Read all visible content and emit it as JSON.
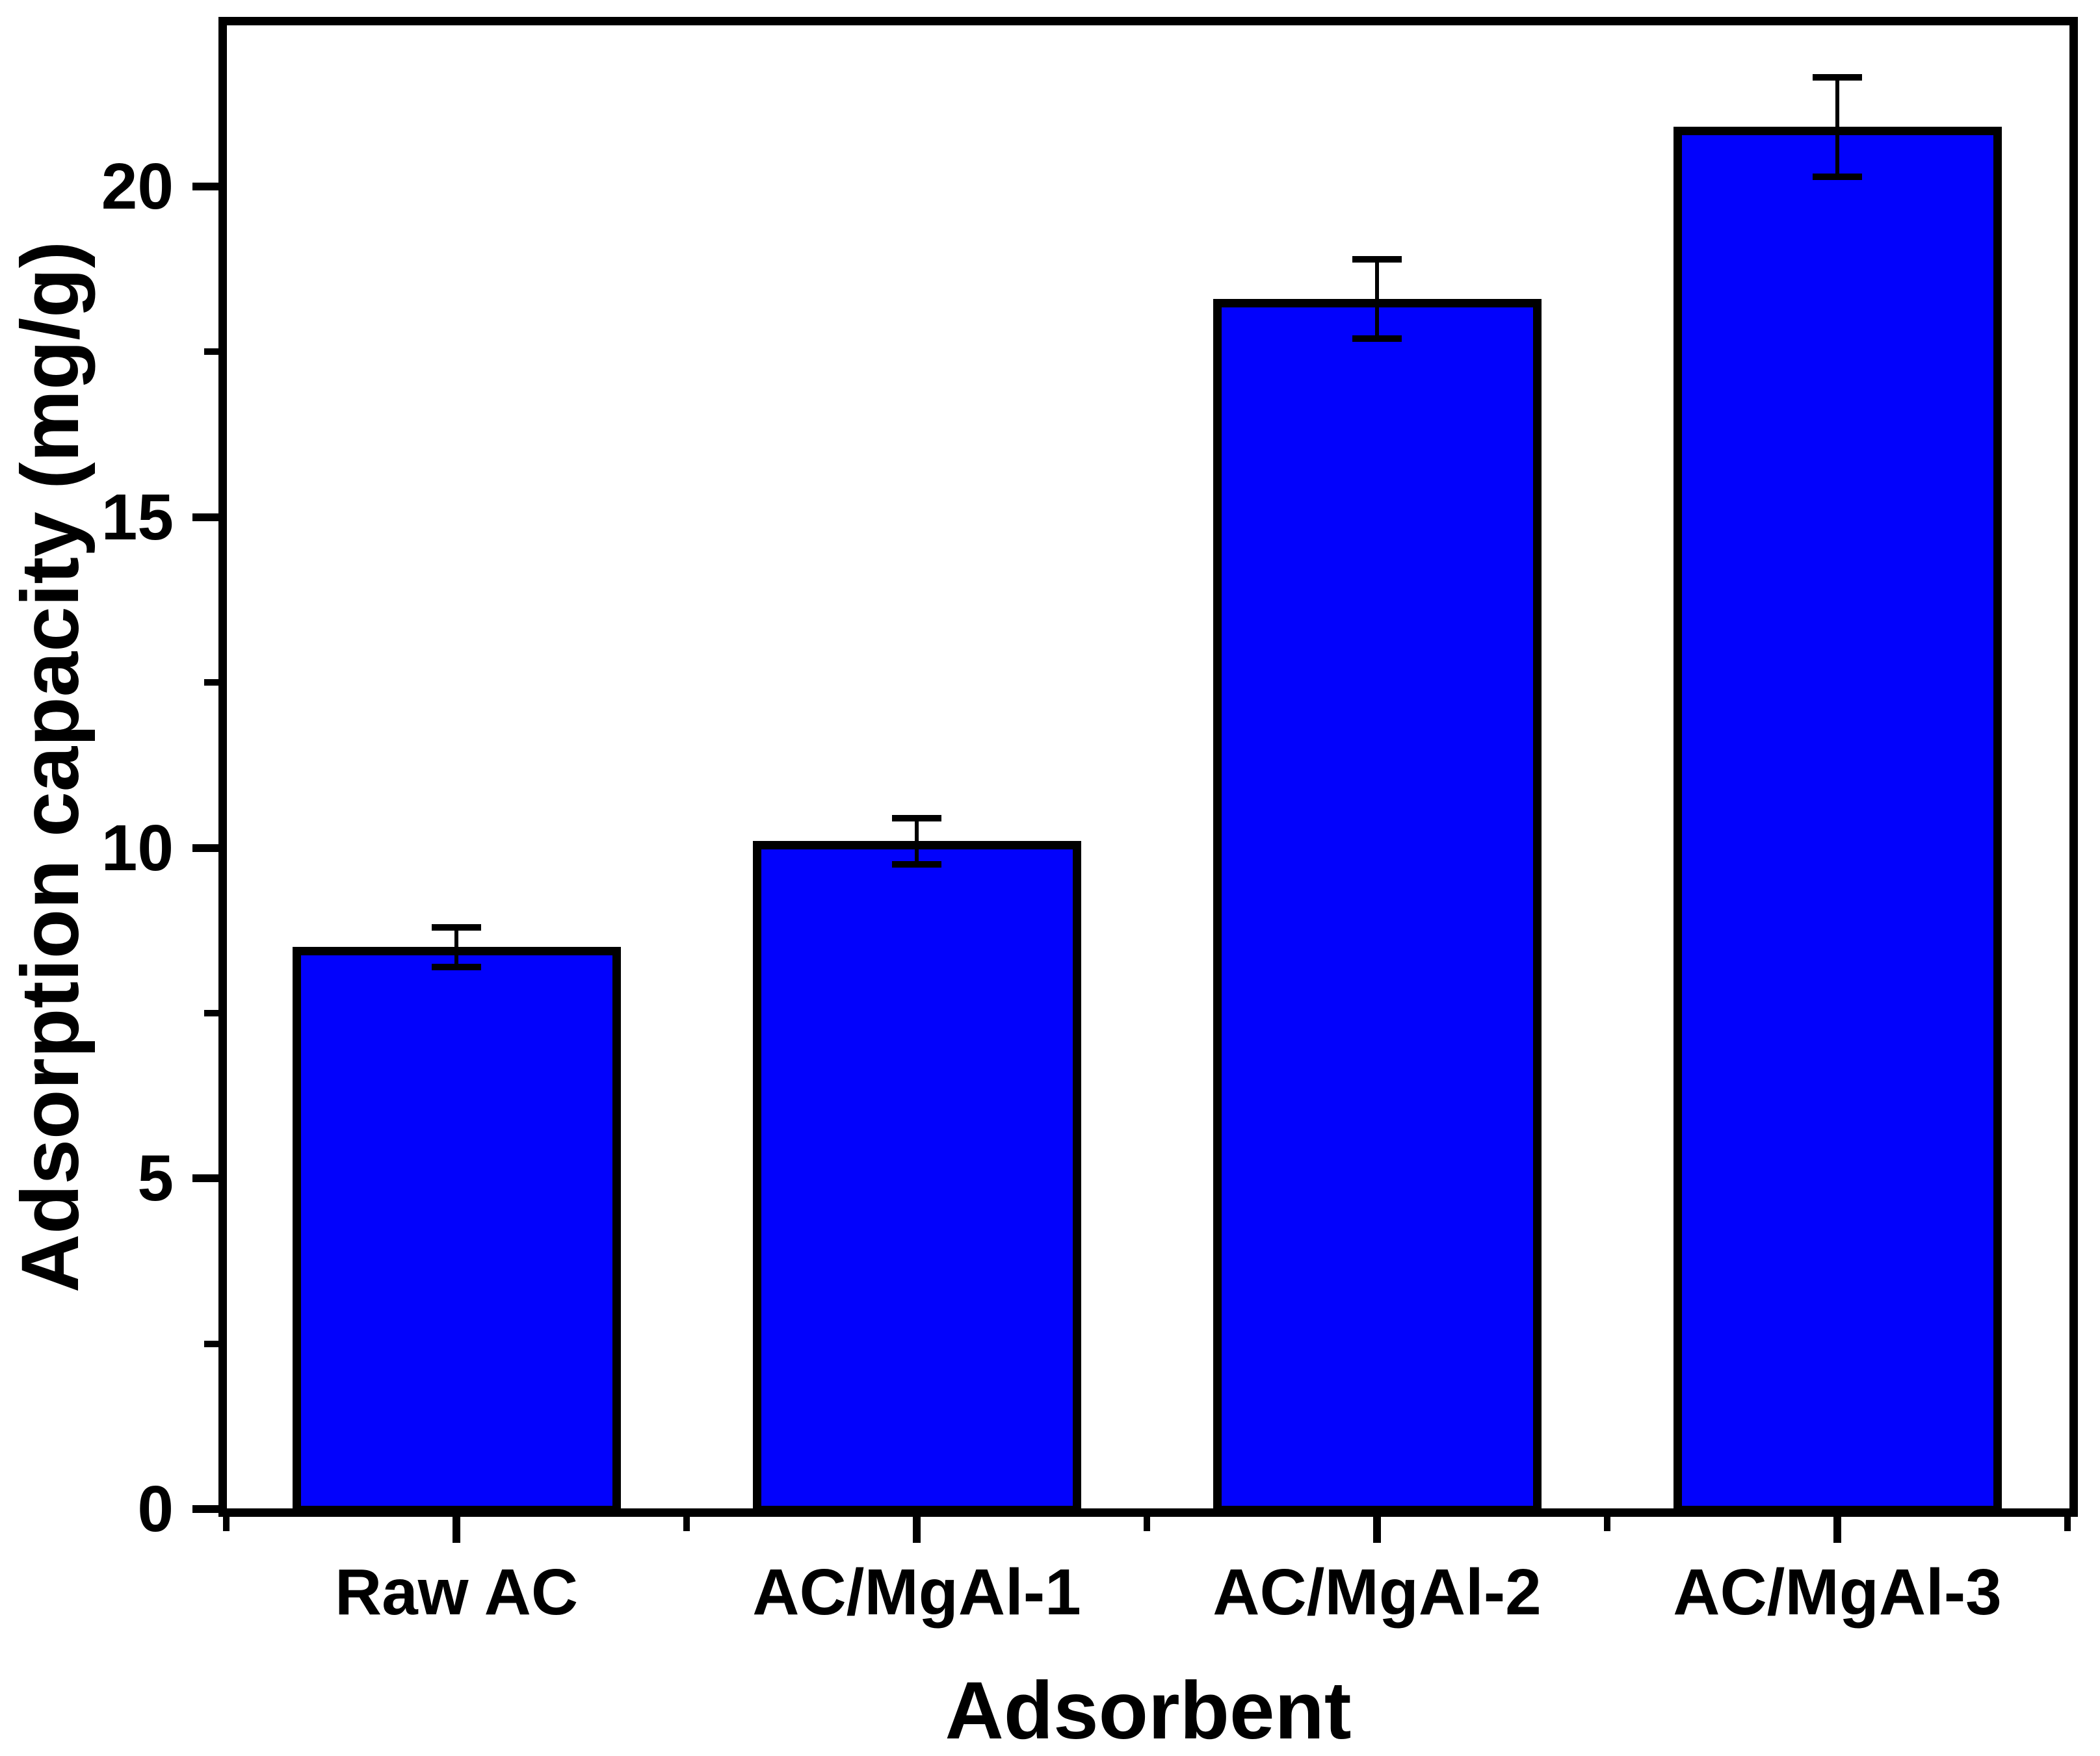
{
  "chart_data": {
    "type": "bar",
    "title": "",
    "xlabel": "Adsorbent",
    "ylabel": "Adsorption capacity (mg/g)",
    "categories": [
      "Raw AC",
      "AC/MgAl-1",
      "AC/MgAl-2",
      "AC/MgAl-3"
    ],
    "values": [
      8.5,
      10.1,
      18.3,
      20.9
    ],
    "error_bars": [
      0.3,
      0.35,
      0.6,
      0.75
    ],
    "y_major_ticks": [
      0,
      5,
      10,
      15,
      20
    ],
    "y_major_tick_labels": [
      "0",
      "5",
      "10",
      "15",
      "20"
    ],
    "y_minor_ticks": [
      2.5,
      7.5,
      12.5,
      17.5
    ],
    "ylim": [
      0,
      22.4
    ],
    "grid": "off",
    "legend": "none",
    "orientation": "vertical",
    "colors": {
      "bar_fill": "#0202fc",
      "bar_border": "#000000",
      "axis": "#000000",
      "text": "#000000",
      "background": "#ffffff"
    }
  }
}
